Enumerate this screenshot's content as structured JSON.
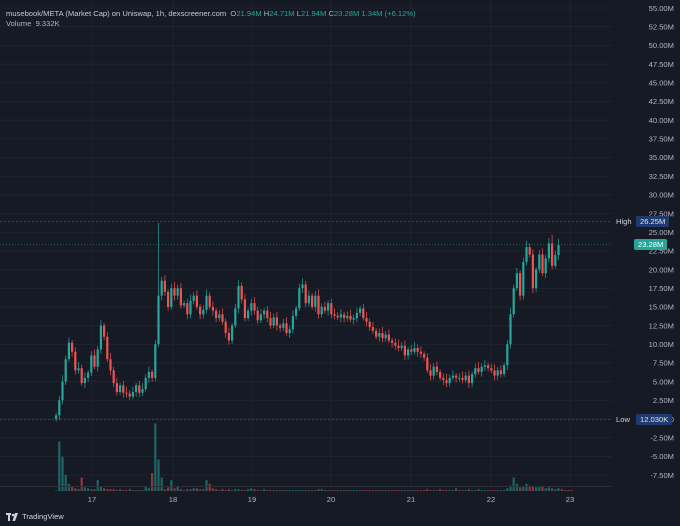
{
  "header": {
    "title": "musebook/META (Market Cap) on Uniswap, 1h, dexscreener.com",
    "o_label": "O",
    "o_value": "21.94M",
    "h_label": "H",
    "h_value": "24.71M",
    "l_label": "L",
    "l_value": "21.94M",
    "c_label": "C",
    "c_value": "23.28M",
    "change": "1.34M (+6.12%)",
    "volume_label": "Volume",
    "volume_value": "9.332K"
  },
  "markers": {
    "high_label": "High",
    "high_value": "26.25M",
    "last_value": "23.28M",
    "low_label": "Low",
    "low_value": "12.030K"
  },
  "branding": {
    "logo_text": "TradingView"
  },
  "colors": {
    "background": "#161a25",
    "up": "#26a69a",
    "down": "#ef5350",
    "grid": "#222631",
    "label_blue": "#1e3a6e"
  },
  "chart_data": {
    "type": "candlestick",
    "title": "musebook/META (Market Cap) on Uniswap, 1h, dexscreener.com",
    "ylim": [
      -10,
      55
    ],
    "yticks": [
      "55.00M",
      "52.50M",
      "50.00M",
      "47.50M",
      "45.00M",
      "42.50M",
      "40.00M",
      "37.50M",
      "35.00M",
      "32.50M",
      "30.00M",
      "27.50M",
      "25.00M",
      "22.50M",
      "20.00M",
      "17.50M",
      "15.00M",
      "12.50M",
      "10.00M",
      "7.50M",
      "5.00M",
      "2.50M",
      "0.00",
      "-2.50M",
      "-5.00M",
      "-7.50M"
    ],
    "xticks": [
      "17",
      "18",
      "19",
      "20",
      "21",
      "22",
      "23"
    ],
    "grid": true,
    "series_close": [
      0.5,
      2.5,
      5.0,
      8.0,
      10.2,
      9.0,
      6.5,
      6.8,
      4.8,
      5.5,
      6.2,
      8.5,
      7.0,
      9.3,
      12.5,
      11.0,
      8.0,
      6.5,
      4.8,
      3.6,
      4.5,
      3.5,
      3.4,
      3.0,
      3.6,
      4.5,
      3.5,
      4.0,
      5.5,
      6.3,
      5.5,
      10.0,
      16.5,
      18.5,
      17.0,
      15.0,
      17.5,
      16.5,
      17.5,
      15.2,
      15.5,
      14.0,
      15.8,
      16.5,
      15.0,
      14.0,
      14.6,
      16.5,
      15.0,
      14.5,
      13.5,
      14.0,
      13.0,
      11.5,
      10.5,
      12.5,
      14.8,
      17.8,
      16.0,
      13.5,
      14.5,
      15.5,
      14.5,
      13.2,
      14.0,
      14.5,
      13.5,
      12.5,
      13.6,
      12.5,
      12.2,
      12.8,
      11.5,
      12.0,
      13.8,
      14.8,
      17.5,
      18.0,
      15.5,
      16.5,
      15.0,
      16.5,
      14.0,
      15.0,
      14.5,
      15.5,
      14.0,
      13.8,
      13.6,
      14.0,
      13.5,
      13.8,
      13.3,
      13.5,
      14.2,
      14.8,
      13.5,
      13.0,
      12.3,
      11.8,
      11.0,
      11.5,
      10.8,
      11.3,
      10.5,
      10.2,
      9.8,
      9.5,
      9.8,
      8.5,
      9.3,
      9.0,
      9.5,
      9.0,
      8.7,
      8.2,
      6.5,
      5.8,
      7.0,
      6.3,
      5.5,
      5.2,
      4.8,
      5.5,
      5.8,
      5.5,
      5.5,
      5.2,
      5.8,
      4.8,
      6.0,
      6.8,
      6.3,
      7.0,
      7.2,
      6.8,
      6.5,
      5.8,
      6.5,
      6.0,
      7.2,
      10.0,
      14.0,
      17.5,
      19.5,
      16.5,
      21.0,
      23.0,
      22.0,
      17.5,
      20.0,
      22.0,
      19.5,
      21.5,
      23.5,
      20.5,
      21.94,
      23.28
    ],
    "series_volume": [
      0,
      55,
      38,
      18,
      8,
      5,
      3,
      2,
      15,
      4,
      3,
      2,
      2,
      12,
      5,
      3,
      2,
      2,
      2,
      1,
      2,
      1,
      1,
      2,
      1,
      1,
      1,
      1,
      5,
      3,
      20,
      75,
      35,
      15,
      2,
      4,
      12,
      3,
      5,
      2,
      1,
      2,
      2,
      3,
      3,
      2,
      2,
      12,
      8,
      3,
      2,
      1,
      2,
      1,
      2,
      1,
      2,
      2,
      1,
      1,
      2,
      3,
      2,
      1,
      1,
      2,
      1,
      1,
      1,
      1,
      1,
      1,
      1,
      1,
      1,
      1,
      1,
      1,
      1,
      1,
      1,
      1,
      2,
      2,
      1,
      1,
      1,
      1,
      1,
      1,
      1,
      1,
      1,
      1,
      1,
      1,
      1,
      1,
      1,
      1,
      1,
      1,
      1,
      1,
      1,
      1,
      1,
      1,
      1,
      1,
      1,
      1,
      1,
      1,
      1,
      1,
      2,
      1,
      1,
      1,
      2,
      1,
      1,
      1,
      1,
      3,
      1,
      1,
      1,
      2,
      1,
      1,
      2,
      1,
      1,
      1,
      1,
      1,
      1,
      1,
      1,
      3,
      6,
      15,
      8,
      4,
      5,
      8,
      6,
      5,
      4,
      5,
      5,
      3,
      4,
      3,
      2,
      3,
      2,
      1,
      1,
      1
    ]
  }
}
